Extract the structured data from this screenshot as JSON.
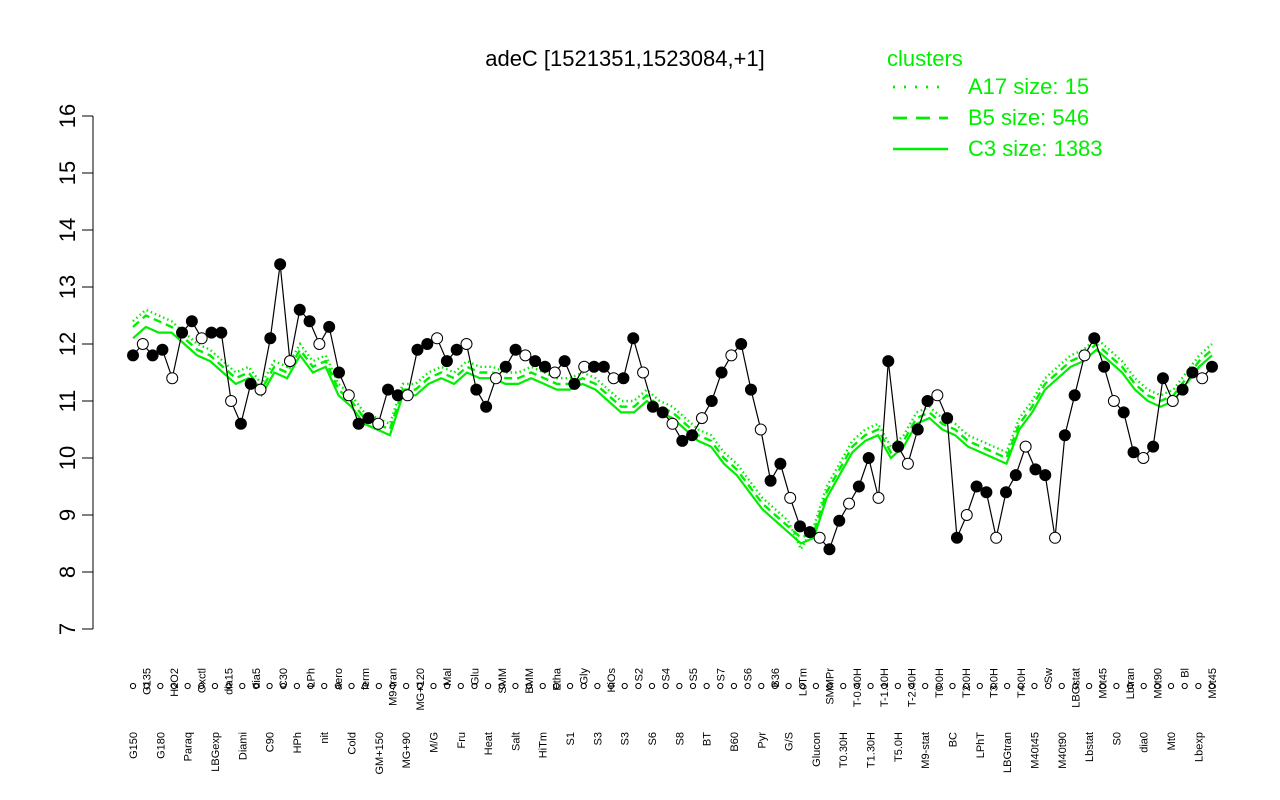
{
  "chart_data": {
    "type": "line",
    "title": "adeC [1521351,1523084,+1]",
    "xlabel": "",
    "ylabel": "",
    "ylim": [
      7,
      16
    ],
    "yticks": [
      7,
      8,
      9,
      10,
      11,
      12,
      13,
      14,
      15,
      16
    ],
    "grid": false,
    "legend": {
      "title": "clusters",
      "position": "top-right",
      "entries": [
        {
          "label": "A17 size: 15",
          "style": "dotted"
        },
        {
          "label": "B5 size: 546",
          "style": "dashed"
        },
        {
          "label": "C3 size: 1383",
          "style": "solid"
        }
      ]
    },
    "x_tick_labels_lower": [
      "G150",
      "G180",
      "Paraq",
      "LBGexp",
      "Diami",
      "C90",
      "HPh",
      "nit",
      "Cold",
      "GM+150",
      "MG+90",
      "M/G",
      "Fru",
      "Heat",
      "Salt",
      "HiTm",
      "S1",
      "S3",
      "S3",
      "S6",
      "S8",
      "BT",
      "B60",
      "Pyr",
      "G/S",
      "Glucon",
      "T0.30H",
      "T1.30H",
      "T5.0H",
      "M9-stat",
      "BC",
      "LPhT",
      "LBGtran",
      "M40t45",
      "M40t90",
      "Lbstat",
      "S0",
      "dia0",
      "Mt0",
      "Lbexp"
    ],
    "x_tick_labels_upper": [
      "G135",
      "H2O2",
      "Oxctl",
      "dia15",
      "dia5",
      "C30",
      "LPh",
      "aero",
      "ferm",
      "M9-tran",
      "MG+120",
      "Mal",
      "Glu",
      "SMM",
      "BMM",
      "Etha",
      "Gly",
      "HiOs",
      "S2",
      "S4",
      "S5",
      "S7",
      "S6",
      "B36",
      "LoTm",
      "SMMPr",
      "T-0.40H",
      "T-1.10H",
      "T-2.40H",
      "T0.0H",
      "T2.0H",
      "T3.0H",
      "T4.0H",
      "Sw",
      "LBGstat",
      "M0t45",
      "Lbtran",
      "M0t90",
      "Bl",
      "M0t45"
    ],
    "series": [
      {
        "name": "",
        "color": "#00ee00",
        "style": "solid",
        "values": [
          12.1,
          12.3,
          12.2,
          12.2,
          12.0,
          11.8,
          11.7,
          11.5,
          11.3,
          11.4,
          11.1,
          11.5,
          11.4,
          11.8,
          11.5,
          11.6,
          11.1,
          10.9,
          10.6,
          10.5,
          10.4,
          11.1,
          11.1,
          11.3,
          11.4,
          11.3,
          11.5,
          11.4,
          11.4,
          11.3,
          11.3,
          11.4,
          11.3,
          11.2,
          11.2,
          11.3,
          11.2,
          11.0,
          10.8,
          10.8,
          11.0,
          10.8,
          10.7,
          10.5,
          10.3,
          10.2,
          9.9,
          9.7,
          9.4,
          9.1,
          8.9,
          8.7,
          8.5,
          8.6,
          9.3,
          9.7,
          10.1,
          10.3,
          10.4,
          10.0,
          10.2,
          10.6,
          10.7,
          10.5,
          10.4,
          10.2,
          10.1,
          10.0,
          9.9,
          10.5,
          10.8,
          11.2,
          11.4,
          11.6,
          11.7,
          11.9,
          11.7,
          11.5,
          11.2,
          11.0,
          10.9,
          11.0,
          11.3,
          11.6,
          11.8
        ]
      },
      {
        "name": "",
        "color": "#00ee00",
        "style": "dashed",
        "values": [
          12.3,
          12.5,
          12.4,
          12.3,
          12.1,
          11.9,
          11.8,
          11.6,
          11.4,
          11.5,
          11.2,
          11.6,
          11.5,
          11.9,
          11.6,
          11.7,
          11.2,
          11.0,
          10.7,
          10.6,
          10.5,
          11.2,
          11.2,
          11.4,
          11.5,
          11.4,
          11.6,
          11.5,
          11.5,
          11.4,
          11.4,
          11.5,
          11.4,
          11.3,
          11.3,
          11.4,
          11.3,
          11.1,
          10.9,
          10.9,
          11.1,
          10.9,
          10.8,
          10.6,
          10.4,
          10.3,
          10.0,
          9.8,
          9.5,
          9.2,
          9.0,
          8.8,
          8.6,
          8.7,
          9.4,
          9.8,
          10.2,
          10.4,
          10.5,
          10.1,
          10.3,
          10.7,
          10.8,
          10.6,
          10.5,
          10.3,
          10.2,
          10.1,
          10.0,
          10.6,
          10.9,
          11.3,
          11.5,
          11.7,
          11.8,
          12.0,
          11.8,
          11.6,
          11.3,
          11.1,
          11.0,
          11.1,
          11.4,
          11.7,
          11.9
        ]
      },
      {
        "name": "",
        "color": "#00ee00",
        "style": "dotted",
        "values": [
          12.4,
          12.6,
          12.5,
          12.4,
          12.2,
          12.0,
          11.9,
          11.7,
          11.5,
          11.6,
          11.3,
          11.7,
          11.6,
          12.0,
          11.7,
          11.8,
          11.3,
          11.1,
          10.8,
          10.7,
          10.6,
          11.3,
          11.3,
          11.5,
          11.6,
          11.5,
          11.7,
          11.6,
          11.6,
          11.5,
          11.5,
          11.6,
          11.5,
          11.4,
          11.4,
          11.5,
          11.4,
          11.2,
          11.0,
          11.0,
          11.2,
          11.0,
          10.9,
          10.7,
          10.5,
          10.4,
          10.1,
          9.9,
          9.6,
          9.3,
          9.1,
          8.9,
          8.4,
          8.8,
          9.5,
          9.9,
          10.3,
          10.5,
          10.6,
          10.2,
          10.4,
          10.8,
          10.9,
          10.7,
          10.6,
          10.4,
          10.3,
          10.2,
          10.1,
          10.7,
          11.0,
          11.4,
          11.6,
          11.8,
          11.9,
          12.1,
          11.9,
          11.7,
          11.4,
          11.2,
          11.1,
          11.2,
          11.5,
          11.8,
          12.0
        ]
      },
      {
        "name": "",
        "color": "#000000",
        "style": "solid-markers",
        "values": [
          11.8,
          12.0,
          11.8,
          11.9,
          11.4,
          12.2,
          12.4,
          12.1,
          12.2,
          12.2,
          11.0,
          10.6,
          11.3,
          11.2,
          12.1,
          13.4,
          11.7,
          12.6,
          12.4,
          12.0,
          12.3,
          11.5,
          11.1,
          10.6,
          10.7,
          10.6,
          11.2,
          11.1,
          11.1,
          11.9,
          12.0,
          12.1,
          11.7,
          11.9,
          12.0,
          11.2,
          10.9,
          11.4,
          11.6,
          11.9,
          11.8,
          11.7,
          11.6,
          11.5,
          11.7,
          11.3,
          11.6,
          11.6,
          11.6,
          11.4,
          11.4,
          12.1,
          11.5,
          10.9,
          10.8,
          10.6,
          10.3,
          10.4,
          10.7,
          11.0,
          11.5,
          11.8,
          12.0,
          11.2,
          10.5,
          9.6,
          9.9,
          9.3,
          8.8,
          8.7,
          8.6,
          8.4,
          8.9,
          9.2,
          9.5,
          10.0,
          9.3,
          11.7,
          10.2,
          9.9,
          10.5,
          11.0,
          11.1,
          10.7,
          8.6,
          9.0,
          9.5,
          9.4,
          8.6,
          9.4,
          9.7,
          10.2,
          9.8,
          9.7,
          8.6,
          10.4,
          11.1,
          11.8,
          12.1,
          11.6,
          11.0,
          10.8,
          10.1,
          10.0,
          10.2,
          11.4,
          11.0,
          11.2,
          11.5,
          11.4,
          11.6
        ]
      }
    ],
    "marker_note": "black line with open and filled circle markers"
  }
}
